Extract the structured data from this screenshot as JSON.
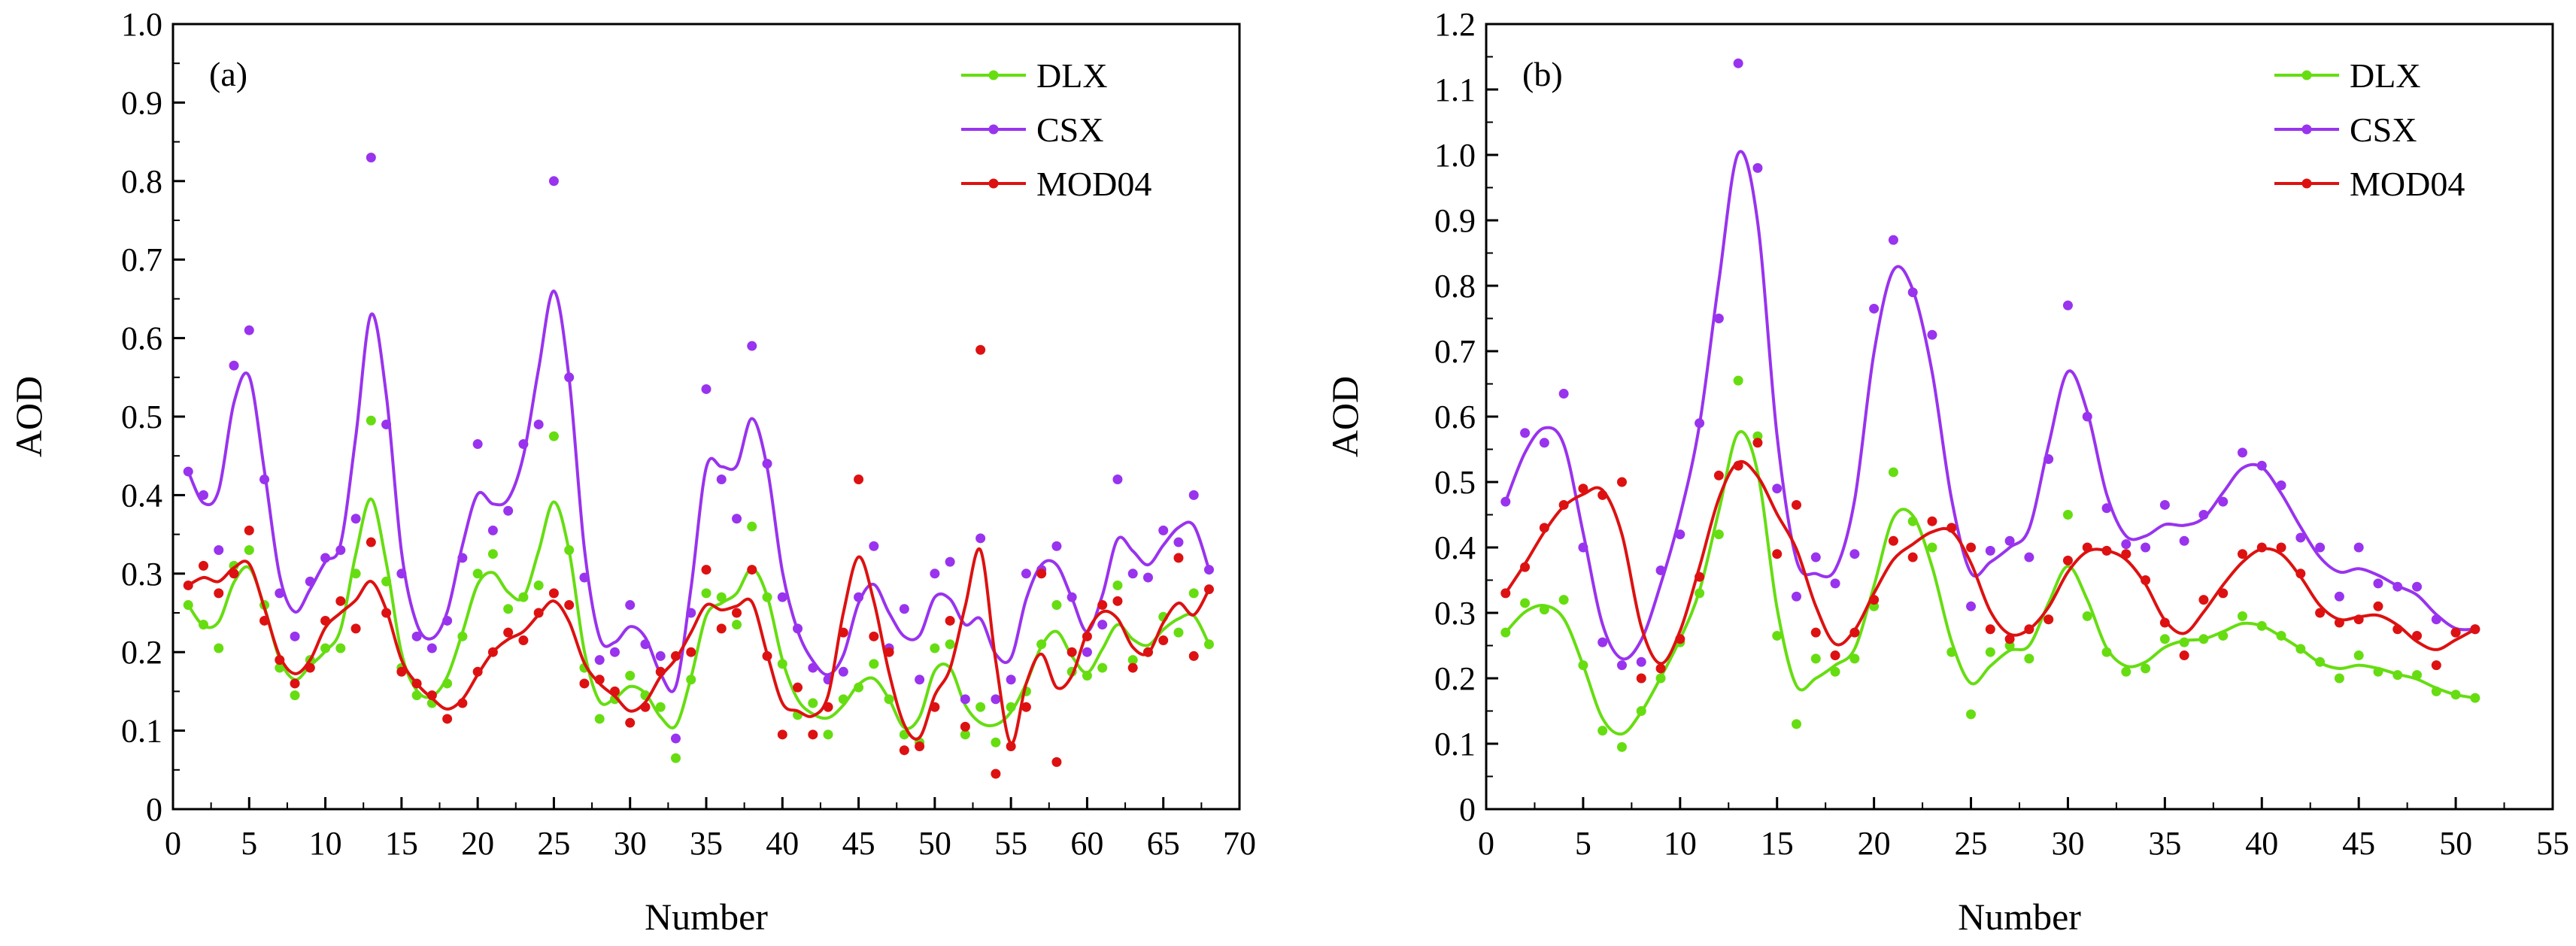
{
  "chart_data": [
    {
      "type": "line",
      "panel_label": "(a)",
      "xlabel": "Number",
      "ylabel": "AOD",
      "xlim": [
        0,
        70
      ],
      "ylim": [
        0,
        1.0
      ],
      "xticks": [
        0,
        5,
        10,
        15,
        20,
        25,
        30,
        35,
        40,
        45,
        50,
        55,
        60,
        65,
        70
      ],
      "yticks": [
        0,
        0.1,
        0.2,
        0.3,
        0.4,
        0.5,
        0.6,
        0.7,
        0.8,
        0.9,
        1.0
      ],
      "xtick_labels": [
        "0",
        "5",
        "10",
        "15",
        "20",
        "25",
        "30",
        "35",
        "40",
        "45",
        "50",
        "55",
        "60",
        "65",
        "70"
      ],
      "ytick_labels": [
        "0",
        "0.1",
        "0.2",
        "0.3",
        "0.4",
        "0.5",
        "0.6",
        "0.7",
        "0.8",
        "0.9",
        "1.0"
      ],
      "legend_position": "top-right",
      "x": [
        1,
        2,
        3,
        4,
        5,
        6,
        7,
        8,
        9,
        10,
        11,
        12,
        13,
        14,
        15,
        16,
        17,
        18,
        19,
        20,
        21,
        22,
        23,
        24,
        25,
        26,
        27,
        28,
        29,
        30,
        31,
        32,
        33,
        34,
        35,
        36,
        37,
        38,
        39,
        40,
        41,
        42,
        43,
        44,
        45,
        46,
        47,
        48,
        49,
        50,
        51,
        52,
        53,
        54,
        55,
        56,
        57,
        58,
        59,
        60,
        61,
        62,
        63,
        64,
        65,
        66,
        67,
        68
      ],
      "series": [
        {
          "name": "DLX",
          "color": "#66dd11",
          "values": [
            0.26,
            0.235,
            0.205,
            0.31,
            0.33,
            0.26,
            0.18,
            0.145,
            0.19,
            0.205,
            0.205,
            0.3,
            0.495,
            0.29,
            0.18,
            0.145,
            0.135,
            0.16,
            0.22,
            0.3,
            0.325,
            0.255,
            0.27,
            0.285,
            0.475,
            0.33,
            0.18,
            0.115,
            0.14,
            0.17,
            0.145,
            0.13,
            0.065,
            0.165,
            0.275,
            0.27,
            0.235,
            0.36,
            0.27,
            0.185,
            0.12,
            0.135,
            0.095,
            0.14,
            0.155,
            0.185,
            0.14,
            0.095,
            0.085,
            0.205,
            0.21,
            0.095,
            0.13,
            0.085,
            0.13,
            0.15,
            0.21,
            0.26,
            0.175,
            0.17,
            0.18,
            0.285,
            0.19,
            0.2,
            0.245,
            0.225,
            0.275,
            0.21
          ]
        },
        {
          "name": "CSX",
          "color": "#9933ee",
          "values": [
            0.43,
            0.4,
            0.33,
            0.565,
            0.61,
            0.42,
            0.275,
            0.22,
            0.29,
            0.32,
            0.33,
            0.37,
            0.83,
            0.49,
            0.3,
            0.22,
            0.205,
            0.24,
            0.32,
            0.465,
            0.355,
            0.38,
            0.465,
            0.49,
            0.8,
            0.55,
            0.295,
            0.19,
            0.2,
            0.26,
            0.21,
            0.195,
            0.09,
            0.25,
            0.535,
            0.42,
            0.37,
            0.59,
            0.44,
            0.27,
            0.23,
            0.18,
            0.165,
            0.175,
            0.27,
            0.335,
            0.205,
            0.255,
            0.165,
            0.3,
            0.315,
            0.14,
            0.345,
            0.14,
            0.165,
            0.3,
            0.305,
            0.335,
            0.27,
            0.2,
            0.235,
            0.42,
            0.3,
            0.295,
            0.355,
            0.34,
            0.4,
            0.305
          ]
        },
        {
          "name": "MOD04",
          "color": "#dd1111",
          "values": [
            0.285,
            0.31,
            0.275,
            0.3,
            0.355,
            0.24,
            0.19,
            0.16,
            0.18,
            0.24,
            0.265,
            0.23,
            0.34,
            0.25,
            0.175,
            0.16,
            0.145,
            0.115,
            0.135,
            0.175,
            0.2,
            0.225,
            0.215,
            0.25,
            0.275,
            0.26,
            0.16,
            0.165,
            0.15,
            0.11,
            0.13,
            0.175,
            0.195,
            0.2,
            0.305,
            0.23,
            0.25,
            0.305,
            0.195,
            0.095,
            0.155,
            0.095,
            0.13,
            0.225,
            0.42,
            0.22,
            0.2,
            0.075,
            0.08,
            0.13,
            0.24,
            0.105,
            0.585,
            0.045,
            0.08,
            0.13,
            0.3,
            0.06,
            0.2,
            0.22,
            0.26,
            0.265,
            0.18,
            0.2,
            0.215,
            0.32,
            0.195,
            0.28
          ]
        }
      ]
    },
    {
      "type": "line",
      "panel_label": "(b)",
      "xlabel": "Number",
      "ylabel": "AOD",
      "xlim": [
        0,
        55
      ],
      "ylim": [
        0,
        1.2
      ],
      "xticks": [
        0,
        5,
        10,
        15,
        20,
        25,
        30,
        35,
        40,
        45,
        50,
        55
      ],
      "yticks": [
        0,
        0.1,
        0.2,
        0.3,
        0.4,
        0.5,
        0.6,
        0.7,
        0.8,
        0.9,
        1.0,
        1.1,
        1.2
      ],
      "xtick_labels": [
        "0",
        "5",
        "10",
        "15",
        "20",
        "25",
        "30",
        "35",
        "40",
        "45",
        "50",
        "55"
      ],
      "ytick_labels": [
        "0",
        "0.1",
        "0.2",
        "0.3",
        "0.4",
        "0.5",
        "0.6",
        "0.7",
        "0.8",
        "0.9",
        "1.0",
        "1.1",
        "1.2"
      ],
      "legend_position": "top-right",
      "x": [
        1,
        2,
        3,
        4,
        5,
        6,
        7,
        8,
        9,
        10,
        11,
        12,
        13,
        14,
        15,
        16,
        17,
        18,
        19,
        20,
        21,
        22,
        23,
        24,
        25,
        26,
        27,
        28,
        29,
        30,
        31,
        32,
        33,
        34,
        35,
        36,
        37,
        38,
        39,
        40,
        41,
        42,
        43,
        44,
        45,
        46,
        47,
        48,
        49,
        50,
        51
      ],
      "series": [
        {
          "name": "DLX",
          "color": "#66dd11",
          "values": [
            0.27,
            0.315,
            0.305,
            0.32,
            0.22,
            0.12,
            0.095,
            0.15,
            0.2,
            0.255,
            0.33,
            0.42,
            0.655,
            0.57,
            0.265,
            0.13,
            0.23,
            0.21,
            0.23,
            0.31,
            0.515,
            0.44,
            0.4,
            0.24,
            0.145,
            0.24,
            0.25,
            0.23,
            0.29,
            0.45,
            0.295,
            0.24,
            0.21,
            0.215,
            0.26,
            0.255,
            0.26,
            0.265,
            0.295,
            0.28,
            0.265,
            0.245,
            0.225,
            0.2,
            0.235,
            0.21,
            0.205,
            0.205,
            0.18,
            0.175,
            0.17
          ]
        },
        {
          "name": "CSX",
          "color": "#9933ee",
          "values": [
            0.47,
            0.575,
            0.56,
            0.635,
            0.4,
            0.255,
            0.22,
            0.225,
            0.365,
            0.42,
            0.59,
            0.75,
            1.14,
            0.98,
            0.49,
            0.325,
            0.385,
            0.345,
            0.39,
            0.765,
            0.87,
            0.79,
            0.725,
            0.43,
            0.31,
            0.395,
            0.41,
            0.385,
            0.535,
            0.77,
            0.6,
            0.46,
            0.405,
            0.4,
            0.465,
            0.41,
            0.45,
            0.47,
            0.545,
            0.525,
            0.495,
            0.415,
            0.4,
            0.325,
            0.4,
            0.345,
            0.34,
            0.34,
            0.29,
            0.27,
            0.275
          ]
        },
        {
          "name": "MOD04",
          "color": "#dd1111",
          "values": [
            0.33,
            0.37,
            0.43,
            0.465,
            0.49,
            0.48,
            0.5,
            0.2,
            0.215,
            0.26,
            0.355,
            0.51,
            0.525,
            0.56,
            0.39,
            0.465,
            0.27,
            0.235,
            0.27,
            0.32,
            0.41,
            0.385,
            0.44,
            0.43,
            0.4,
            0.275,
            0.26,
            0.275,
            0.29,
            0.38,
            0.4,
            0.395,
            0.39,
            0.35,
            0.285,
            0.235,
            0.32,
            0.33,
            0.39,
            0.4,
            0.4,
            0.36,
            0.3,
            0.285,
            0.29,
            0.31,
            0.275,
            0.265,
            0.22,
            0.27,
            0.275
          ]
        }
      ]
    }
  ]
}
